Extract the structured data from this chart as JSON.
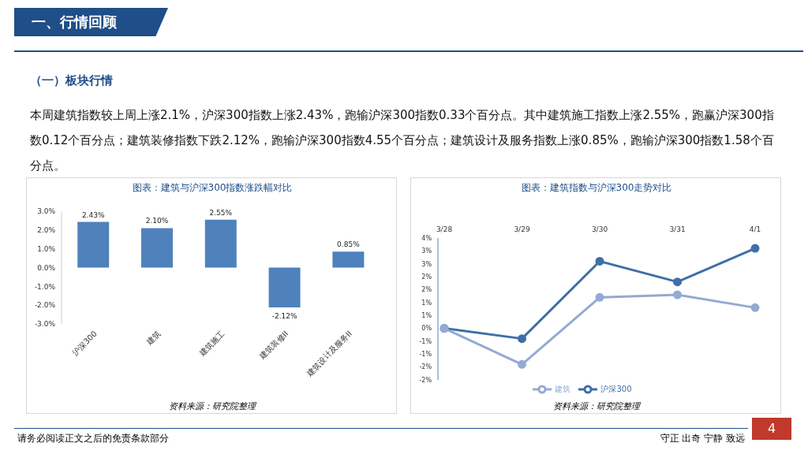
{
  "chart_data": [
    {
      "type": "other",
      "title": "一、行情回顾",
      "subtitle": "（一）板块行情",
      "annotations": [
        "本周建筑指数较上周上涨2.1%，沪深300指数上涨2.43%，跑输沪深300指数0.33个百分点。其中建筑施工指数上涨2.55%，跑赢沪深300指数0.12个百分点；建筑装修指数下跌2.12%，跑输沪深300指数4.55个百分点；建筑设计及服务指数上涨0.85%，跑输沪深300指数1.58个百分点。",
        "请务必阅读正文之后的免责条款部分",
        "守正 出奇 宁静 致远",
        "4"
      ]
    },
    {
      "type": "bar",
      "title": "图表：建筑与沪深300指数涨跌幅对比",
      "annotations": [
        "资料来源：研究院整理"
      ],
      "categories": [
        "沪深300",
        "建筑",
        "建筑施工",
        "建筑装修II",
        "建筑设计及服务II"
      ],
      "values": [
        2.43,
        2.1,
        2.55,
        -2.12,
        0.85
      ],
      "value_labels": [
        "2.43%",
        "2.10%",
        "2.55%",
        "-2.12%",
        "0.85%"
      ],
      "color": "#4f81bd",
      "ylim": [
        -3,
        3
      ],
      "yticks": [
        {
          "value": -3,
          "label": "-3.0%"
        },
        {
          "value": -2,
          "label": "-2.0%"
        },
        {
          "value": -1,
          "label": "-1.0%"
        },
        {
          "value": 0,
          "label": "0.0%"
        },
        {
          "value": 1,
          "label": "1.0%"
        },
        {
          "value": 2,
          "label": "2.0%"
        },
        {
          "value": 3,
          "label": "3.0%"
        }
      ],
      "grid": false,
      "legend": false
    },
    {
      "type": "line",
      "title": "图表：建筑指数与沪深300走势对比",
      "annotations": [
        "资料来源：研究院整理"
      ],
      "categories": [
        "3/28",
        "3/29",
        "3/30",
        "3/31",
        "4/1"
      ],
      "series": [
        {
          "name": "沪深300",
          "color": "#3f6ea8",
          "values": [
            0,
            -0.4,
            2.6,
            1.8,
            3.1
          ]
        },
        {
          "name": "建筑",
          "color": "#94aad4",
          "values": [
            0,
            -1.4,
            1.2,
            1.3,
            0.8
          ]
        }
      ],
      "ylim": [
        -2,
        3.5
      ],
      "yticks": [
        {
          "value": -2,
          "label": "-2%"
        },
        {
          "value": -1.5,
          "label": "-2%"
        },
        {
          "value": -1,
          "label": "-1%"
        },
        {
          "value": -0.5,
          "label": "-1%"
        },
        {
          "value": 0,
          "label": "0%"
        },
        {
          "value": 0.5,
          "label": "1%"
        },
        {
          "value": 1,
          "label": "1%"
        },
        {
          "value": 1.5,
          "label": "2%"
        },
        {
          "value": 2,
          "label": "2%"
        },
        {
          "value": 2.5,
          "label": "3%"
        },
        {
          "value": 3,
          "label": "3%"
        },
        {
          "value": 3.5,
          "label": "4%"
        }
      ],
      "grid": false,
      "legend": "bottom",
      "marker": "circle",
      "line_style": "solid"
    }
  ]
}
